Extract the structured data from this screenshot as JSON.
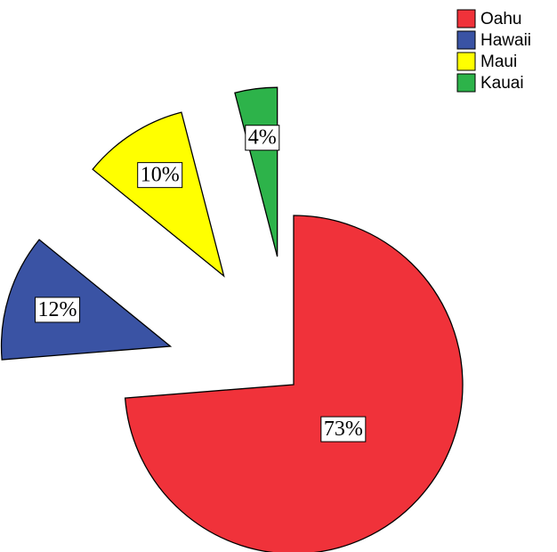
{
  "chart_data": {
    "type": "pie",
    "categories": [
      "Oahu",
      "Hawaii",
      "Maui",
      "Kauai"
    ],
    "values": [
      73,
      12,
      10,
      4
    ],
    "value_labels": [
      "73%",
      "12%",
      "10%",
      "4%"
    ],
    "colors": [
      "#f0323a",
      "#3a53a4",
      "#ffff00",
      "#2db34a"
    ],
    "explode": [
      false,
      true,
      true,
      true
    ],
    "legend": "top-right"
  }
}
